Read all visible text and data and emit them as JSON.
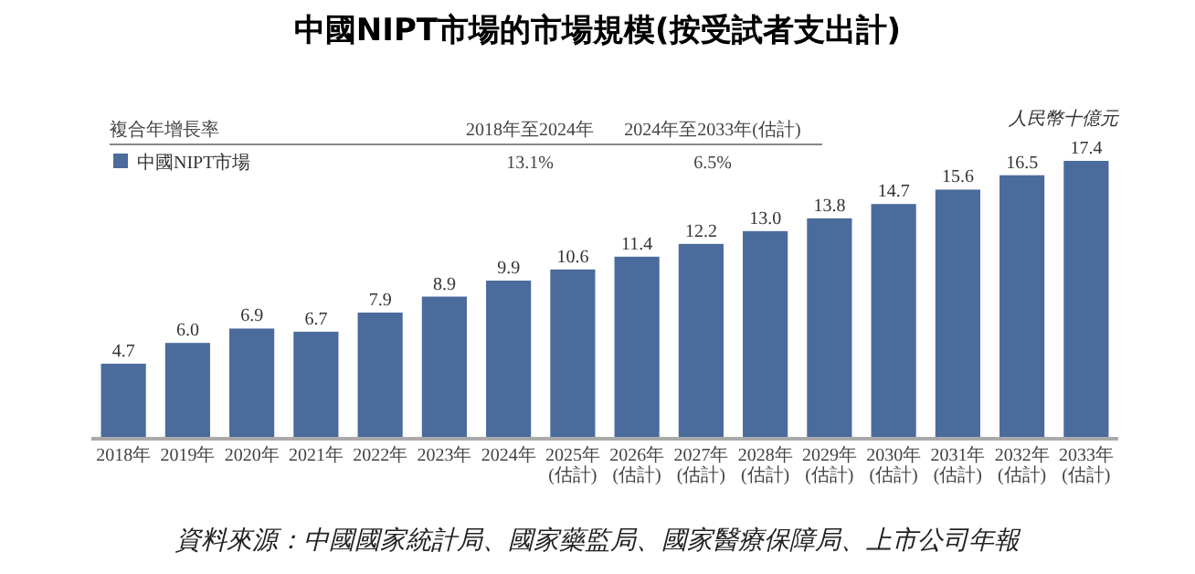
{
  "chart_data": {
    "type": "bar",
    "title": "中國NIPT市場的市場規模(按受試者支出計)",
    "ylabel": "人民幣十億元",
    "categories": [
      "2018年",
      "2019年",
      "2020年",
      "2021年",
      "2022年",
      "2023年",
      "2024年",
      "2025年\n(估計)",
      "2026年\n(估計)",
      "2027年\n(估計)",
      "2028年\n(估計)",
      "2029年\n(估計)",
      "2030年\n(估計)",
      "2031年\n(估計)",
      "2032年\n(估計)",
      "2033年\n(估計)"
    ],
    "series": [
      {
        "name": "中國NIPT市場",
        "color": "#4a6b9c",
        "values": [
          4.7,
          6.0,
          6.9,
          6.7,
          7.9,
          8.9,
          9.9,
          10.6,
          11.4,
          12.2,
          13.0,
          13.8,
          14.7,
          15.6,
          16.5,
          17.4
        ],
        "value_labels": [
          "4.7",
          "6.0",
          "6.9",
          "6.7",
          "7.9",
          "8.9",
          "9.9",
          "10.6",
          "11.4",
          "12.2",
          "13.0",
          "13.8",
          "14.7",
          "15.6",
          "16.5",
          "17.4"
        ]
      }
    ],
    "legend": "top left",
    "grid": false,
    "annotations": [
      "複合年增長率",
      "2018年至2024年",
      "2024年至2033年(估計)",
      "13.1%",
      "6.5%",
      "資料來源：中國國家統計局、國家藥監局、國家醫療保障局、上市公司年報"
    ]
  }
}
